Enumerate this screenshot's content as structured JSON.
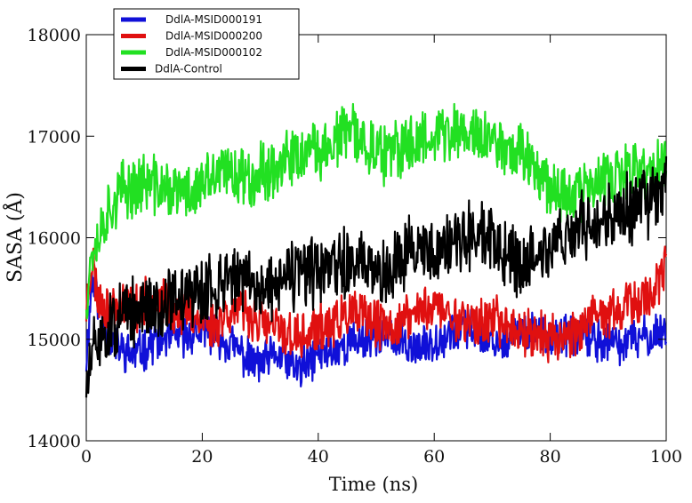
{
  "chart_data": {
    "type": "line",
    "title": "",
    "xlabel": "Time (ns)",
    "ylabel": "SASA (Å)",
    "xlim": [
      0,
      100
    ],
    "ylim": [
      14000,
      18000
    ],
    "x_ticks": [
      0,
      20,
      40,
      60,
      80,
      100
    ],
    "y_ticks": [
      14000,
      15000,
      16000,
      17000,
      18000
    ],
    "x_tick_labels": [
      "0",
      "20",
      "40",
      "60",
      "80",
      "100"
    ],
    "y_tick_labels": [
      "14000",
      "15000",
      "16000",
      "17000",
      "18000"
    ],
    "legend_position": "top-left",
    "series": [
      {
        "name": "DdlA-MSID000191",
        "color": "#1010d8",
        "x": [
          0,
          1,
          2,
          4,
          6,
          8,
          10,
          12,
          15,
          18,
          20,
          22,
          25,
          28,
          30,
          33,
          35,
          37,
          40,
          43,
          45,
          48,
          50,
          52,
          55,
          58,
          60,
          62,
          65,
          68,
          70,
          72,
          75,
          78,
          80,
          82,
          85,
          88,
          90,
          92,
          95,
          98,
          100
        ],
        "values": [
          14800,
          15600,
          15400,
          15000,
          14900,
          14850,
          14900,
          15000,
          15000,
          15050,
          15100,
          15050,
          14950,
          14800,
          14750,
          14850,
          14750,
          14700,
          14850,
          14900,
          14950,
          15000,
          15050,
          15000,
          14950,
          14900,
          15000,
          15050,
          15100,
          15050,
          15000,
          14950,
          15050,
          15100,
          15050,
          15000,
          15050,
          15000,
          14950,
          14950,
          15000,
          15050,
          15100
        ]
      },
      {
        "name": "DdlA-MSID000200",
        "color": "#e01010",
        "x": [
          0,
          1,
          2,
          4,
          6,
          8,
          10,
          12,
          15,
          18,
          20,
          22,
          25,
          28,
          30,
          33,
          35,
          37,
          40,
          43,
          45,
          48,
          50,
          52,
          55,
          58,
          60,
          62,
          65,
          68,
          70,
          72,
          75,
          78,
          80,
          82,
          85,
          88,
          90,
          92,
          95,
          98,
          100
        ],
        "values": [
          15300,
          15800,
          15400,
          15300,
          15350,
          15300,
          15350,
          15400,
          15300,
          15250,
          15200,
          15150,
          15300,
          15250,
          15150,
          15100,
          15050,
          15000,
          15100,
          15150,
          15250,
          15200,
          15150,
          15100,
          15200,
          15300,
          15350,
          15250,
          15200,
          15150,
          15200,
          15150,
          15100,
          15050,
          15000,
          15050,
          15100,
          15200,
          15250,
          15300,
          15350,
          15500,
          15700
        ]
      },
      {
        "name": "DdlA-MSID000102",
        "color": "#22e022",
        "x": [
          0,
          1,
          2,
          4,
          6,
          8,
          10,
          12,
          15,
          18,
          20,
          22,
          25,
          28,
          30,
          33,
          35,
          37,
          40,
          43,
          45,
          48,
          50,
          52,
          55,
          58,
          60,
          62,
          65,
          68,
          70,
          72,
          75,
          78,
          80,
          82,
          85,
          88,
          90,
          92,
          95,
          98,
          100
        ],
        "values": [
          15400,
          15900,
          16000,
          16300,
          16450,
          16500,
          16550,
          16500,
          16450,
          16450,
          16500,
          16600,
          16650,
          16600,
          16650,
          16700,
          16750,
          16800,
          16850,
          16950,
          17050,
          16950,
          16850,
          16800,
          16900,
          17000,
          17050,
          17000,
          17050,
          17000,
          16950,
          16900,
          16850,
          16700,
          16500,
          16450,
          16450,
          16500,
          16550,
          16600,
          16650,
          16650,
          16700
        ]
      },
      {
        "name": "DdlA-Control",
        "color": "#000000",
        "x": [
          0,
          1,
          2,
          4,
          6,
          8,
          10,
          12,
          15,
          18,
          20,
          22,
          25,
          28,
          30,
          33,
          35,
          37,
          40,
          43,
          45,
          48,
          50,
          52,
          55,
          58,
          60,
          62,
          65,
          68,
          70,
          72,
          75,
          78,
          80,
          82,
          85,
          88,
          90,
          92,
          95,
          98,
          100
        ],
        "values": [
          14500,
          14800,
          15000,
          15100,
          15200,
          15250,
          15300,
          15350,
          15400,
          15450,
          15450,
          15500,
          15650,
          15550,
          15500,
          15550,
          15600,
          15650,
          15650,
          15700,
          15750,
          15700,
          15650,
          15700,
          15850,
          15900,
          15850,
          15950,
          16000,
          16050,
          15950,
          15850,
          15750,
          15800,
          15900,
          16000,
          16100,
          16150,
          16200,
          16250,
          16300,
          16400,
          16500
        ]
      }
    ]
  }
}
